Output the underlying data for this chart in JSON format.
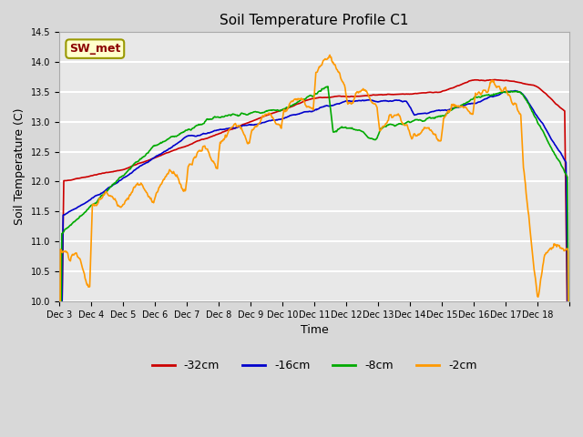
{
  "title": "Soil Temperature Profile C1",
  "xlabel": "Time",
  "ylabel": "Soil Temperature (C)",
  "ylim": [
    10.0,
    14.5
  ],
  "annotation": "SW_met",
  "legend_labels": [
    "-32cm",
    "-16cm",
    "-8cm",
    "-2cm"
  ],
  "legend_colors": [
    "#cc0000",
    "#0000cc",
    "#00aa00",
    "#ff9900"
  ],
  "background_color": "#e8e8e8",
  "plot_bg_color": "#e8e8e8",
  "grid_color": "#ffffff",
  "x_tick_labels": [
    "Dec 3",
    "Dec 4",
    "Dec 5",
    "Dec 6",
    "Dec 7",
    "Dec 8",
    "Dec 9",
    "Dec 10",
    "Dec 11",
    "Dec 12",
    "Dec 13",
    "Dec 14",
    "Dec 15",
    "Dec 16",
    "Dec 17",
    "Dec 18"
  ],
  "n_days": 16,
  "pts_per_day": 48
}
